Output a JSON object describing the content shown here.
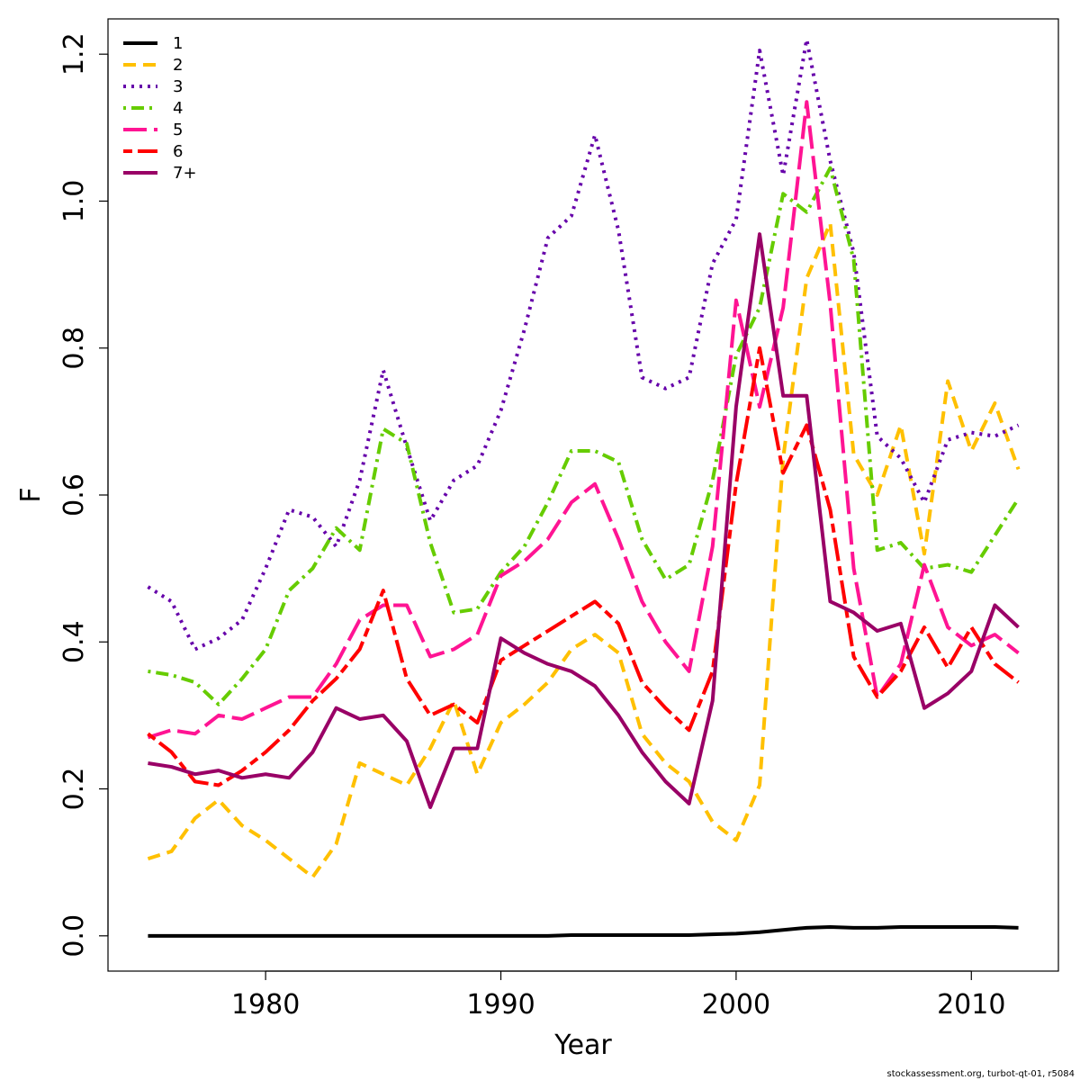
{
  "chart_data": {
    "type": "line",
    "title": "",
    "xlabel": "Year",
    "ylabel": "F",
    "xlim": [
      1973.3,
      2013.7
    ],
    "ylim": [
      -0.048,
      1.248
    ],
    "x_ticks": [
      "1980",
      "1990",
      "2000",
      "2010"
    ],
    "y_ticks": [
      "0.0",
      "0.2",
      "0.4",
      "0.6",
      "0.8",
      "1.0",
      "1.2"
    ],
    "legend_position": "top-left",
    "x": [
      1975,
      1976,
      1977,
      1978,
      1979,
      1980,
      1981,
      1982,
      1983,
      1984,
      1985,
      1986,
      1987,
      1988,
      1989,
      1990,
      1991,
      1992,
      1993,
      1994,
      1995,
      1996,
      1997,
      1998,
      1999,
      2000,
      2001,
      2002,
      2003,
      2004,
      2005,
      2006,
      2007,
      2008,
      2009,
      2010,
      2011,
      2012
    ],
    "series": [
      {
        "name": "1",
        "color": "#000000",
        "dash": "solid",
        "values": [
          0.0,
          0.0,
          0.0,
          0.0,
          0.0,
          0.0,
          0.0,
          0.0,
          0.0,
          0.0,
          0.0,
          0.0,
          0.0,
          0.0,
          0.0,
          0.0,
          0.0,
          0.0,
          0.001,
          0.001,
          0.001,
          0.001,
          0.001,
          0.001,
          0.002,
          0.003,
          0.005,
          0.008,
          0.011,
          0.012,
          0.011,
          0.011,
          0.012,
          0.012,
          0.012,
          0.012,
          0.012,
          0.011
        ]
      },
      {
        "name": "2",
        "color": "#FFC000",
        "dash": "dashed",
        "values": [
          0.105,
          0.115,
          0.16,
          0.185,
          0.15,
          0.13,
          0.105,
          0.08,
          0.125,
          0.235,
          0.22,
          0.205,
          0.255,
          0.32,
          0.22,
          0.29,
          0.315,
          0.345,
          0.39,
          0.41,
          0.385,
          0.275,
          0.235,
          0.21,
          0.155,
          0.13,
          0.205,
          0.65,
          0.895,
          0.97,
          0.655,
          0.6,
          0.695,
          0.52,
          0.755,
          0.66,
          0.725,
          0.635
        ]
      },
      {
        "name": "3",
        "color": "#6600AA",
        "dash": "dotted",
        "values": [
          0.475,
          0.455,
          0.39,
          0.405,
          0.43,
          0.5,
          0.58,
          0.57,
          0.53,
          0.62,
          0.77,
          0.665,
          0.565,
          0.62,
          0.64,
          0.715,
          0.825,
          0.95,
          0.98,
          1.09,
          0.96,
          0.76,
          0.745,
          0.76,
          0.915,
          0.975,
          1.205,
          1.035,
          1.22,
          1.055,
          0.93,
          0.68,
          0.65,
          0.59,
          0.675,
          0.685,
          0.68,
          0.695
        ]
      },
      {
        "name": "4",
        "color": "#66CC00",
        "dash": "dotdash",
        "values": [
          0.36,
          0.355,
          0.345,
          0.315,
          0.35,
          0.39,
          0.47,
          0.5,
          0.555,
          0.525,
          0.69,
          0.67,
          0.535,
          0.44,
          0.445,
          0.495,
          0.53,
          0.59,
          0.66,
          0.66,
          0.645,
          0.54,
          0.485,
          0.505,
          0.62,
          0.79,
          0.855,
          1.01,
          0.985,
          1.045,
          0.92,
          0.525,
          0.535,
          0.5,
          0.505,
          0.495,
          0.545,
          0.595
        ]
      },
      {
        "name": "5",
        "color": "#FF1493",
        "dash": "longdash",
        "values": [
          0.27,
          0.28,
          0.275,
          0.3,
          0.295,
          0.31,
          0.325,
          0.325,
          0.37,
          0.43,
          0.45,
          0.45,
          0.38,
          0.39,
          0.41,
          0.49,
          0.51,
          0.54,
          0.59,
          0.615,
          0.54,
          0.455,
          0.4,
          0.36,
          0.53,
          0.865,
          0.72,
          0.855,
          1.135,
          0.86,
          0.5,
          0.325,
          0.37,
          0.505,
          0.42,
          0.395,
          0.41,
          0.385
        ]
      },
      {
        "name": "6",
        "color": "#FF0000",
        "dash": "twodash",
        "values": [
          0.275,
          0.25,
          0.21,
          0.205,
          0.225,
          0.25,
          0.28,
          0.32,
          0.35,
          0.39,
          0.47,
          0.35,
          0.3,
          0.315,
          0.29,
          0.375,
          0.395,
          0.415,
          0.435,
          0.455,
          0.425,
          0.345,
          0.31,
          0.28,
          0.36,
          0.615,
          0.8,
          0.63,
          0.695,
          0.58,
          0.38,
          0.325,
          0.36,
          0.42,
          0.365,
          0.42,
          0.37,
          0.345
        ]
      },
      {
        "name": "7+",
        "color": "#990066",
        "dash": "solid",
        "values": [
          0.235,
          0.23,
          0.22,
          0.225,
          0.215,
          0.22,
          0.215,
          0.25,
          0.31,
          0.295,
          0.3,
          0.265,
          0.175,
          0.255,
          0.255,
          0.405,
          0.385,
          0.37,
          0.36,
          0.34,
          0.3,
          0.25,
          0.21,
          0.18,
          0.32,
          0.72,
          0.955,
          0.735,
          0.735,
          0.455,
          0.44,
          0.415,
          0.425,
          0.31,
          0.33,
          0.36,
          0.45,
          0.42
        ]
      }
    ]
  },
  "footer": "stockassessment.org, turbot-qt-01, r5084"
}
